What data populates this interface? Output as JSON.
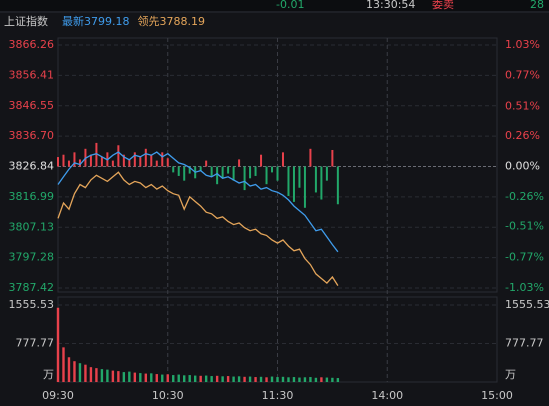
{
  "top_bar": [
    "-0.01",
    "13:30:54",
    "委卖",
    "28"
  ],
  "chart_data": {
    "type": "line",
    "title": "上证指数",
    "x": [
      0,
      3,
      6,
      9,
      12,
      15,
      18,
      21,
      24,
      27,
      30,
      33,
      36,
      39,
      42,
      45,
      48,
      51,
      54,
      57,
      60,
      63,
      66,
      69,
      72,
      75,
      78,
      81,
      84,
      87,
      90,
      93,
      96,
      99,
      102,
      105,
      108,
      111,
      114,
      117,
      120,
      123,
      126,
      129,
      132,
      135,
      138,
      141,
      144,
      147,
      150,
      153
    ],
    "xlim": [
      0,
      240
    ],
    "xticks": [
      {
        "value": 0,
        "label": "09:30"
      },
      {
        "value": 60,
        "label": "10:30"
      },
      {
        "value": 120,
        "label": "11:30"
      },
      {
        "value": 180,
        "label": "14:00"
      },
      {
        "value": 240,
        "label": "15:00"
      }
    ],
    "ylim": [
      3787.42,
      3866.26
    ],
    "yticks": [
      3866.26,
      3856.41,
      3846.55,
      {
        "value": 3836.7,
        "label": "3836.70"
      },
      3826.84,
      3816.99,
      3807.13,
      3797.28,
      3787.42
    ],
    "y2lim": [
      -1.03,
      1.03
    ],
    "y2ticks": [
      {
        "value": 1.03,
        "label": "1.03%"
      },
      {
        "value": 0.77,
        "label": "0.77%"
      },
      {
        "value": 0.51,
        "label": "0.51%"
      },
      {
        "value": 0.26,
        "label": "0.26%"
      },
      {
        "value": 0,
        "label": "0.00%"
      },
      {
        "value": -0.26,
        "label": "-0.26%"
      },
      {
        "value": -0.51,
        "label": "-0.51%"
      },
      {
        "value": -0.77,
        "label": "-0.77%"
      },
      {
        "value": -1.03,
        "label": "-1.03%"
      }
    ],
    "grid": true,
    "up_color": "#e8414b",
    "down_color": "#22a86a",
    "series": [
      {
        "name": "最新3799.18",
        "color": "#3f9cec",
        "values": [
          3821.0,
          3823.5,
          3826.0,
          3828.0,
          3827.5,
          3829.5,
          3830.5,
          3831.0,
          3830.0,
          3829.0,
          3830.5,
          3831.5,
          3830.0,
          3829.0,
          3830.5,
          3830.0,
          3831.0,
          3830.5,
          3831.5,
          3830.0,
          3831.0,
          3829.5,
          3828.0,
          3827.5,
          3826.5,
          3825.0,
          3825.5,
          3824.0,
          3823.5,
          3824.5,
          3823.0,
          3823.5,
          3822.5,
          3821.5,
          3822.0,
          3820.5,
          3821.0,
          3819.5,
          3820.0,
          3819.0,
          3818.5,
          3817.5,
          3816.0,
          3814.0,
          3812.5,
          3811.0,
          3808.5,
          3806.0,
          3806.5,
          3804.0,
          3801.5,
          3799.18
        ]
      },
      {
        "name": "领先3788.19",
        "color": "#e4a55a",
        "values": [
          3810.0,
          3815.0,
          3813.0,
          3818.0,
          3821.0,
          3820.0,
          3822.5,
          3824.0,
          3823.0,
          3822.0,
          3823.5,
          3825.0,
          3822.5,
          3821.0,
          3822.0,
          3821.5,
          3820.0,
          3821.0,
          3819.5,
          3820.5,
          3819.0,
          3818.0,
          3817.5,
          3813.0,
          3817.0,
          3815.5,
          3814.0,
          3812.0,
          3811.5,
          3810.0,
          3810.5,
          3809.0,
          3808.0,
          3808.5,
          3807.0,
          3806.0,
          3806.5,
          3805.0,
          3804.5,
          3803.0,
          3802.0,
          3803.0,
          3801.0,
          3799.5,
          3800.0,
          3797.0,
          3795.0,
          3792.0,
          3790.5,
          3789.0,
          3791.0,
          3788.19
        ]
      }
    ],
    "bars": {
      "axis": "y2",
      "values": [
        0.08,
        0.1,
        0.05,
        0.12,
        0.06,
        0.15,
        0.1,
        0.2,
        0.08,
        0.12,
        0.05,
        0.18,
        0.1,
        0.06,
        0.12,
        0.08,
        0.15,
        0.1,
        0.05,
        0.12,
        0.07,
        -0.05,
        -0.08,
        -0.12,
        -0.06,
        -0.1,
        -0.04,
        0.05,
        -0.08,
        -0.15,
        -0.1,
        -0.06,
        -0.12,
        0.06,
        -0.2,
        -0.1,
        -0.08,
        0.1,
        -0.15,
        -0.05,
        -0.12,
        0.12,
        -0.25,
        -0.3,
        -0.18,
        -0.35,
        0.15,
        -0.22,
        -0.28,
        -0.12,
        0.14,
        -0.32
      ]
    },
    "volume": {
      "unit": "万",
      "ylim": [
        0,
        1555.53
      ],
      "yticks": [
        1555.53,
        777.77
      ],
      "values": [
        1500,
        700,
        500,
        420,
        380,
        350,
        300,
        280,
        260,
        250,
        230,
        220,
        200,
        210,
        190,
        180,
        170,
        175,
        160,
        150,
        155,
        140,
        150,
        135,
        140,
        130,
        125,
        130,
        120,
        125,
        115,
        120,
        110,
        115,
        105,
        110,
        100,
        105,
        95,
        110,
        100,
        105,
        95,
        100,
        90,
        95,
        100,
        85,
        95,
        90,
        85,
        80
      ]
    }
  }
}
